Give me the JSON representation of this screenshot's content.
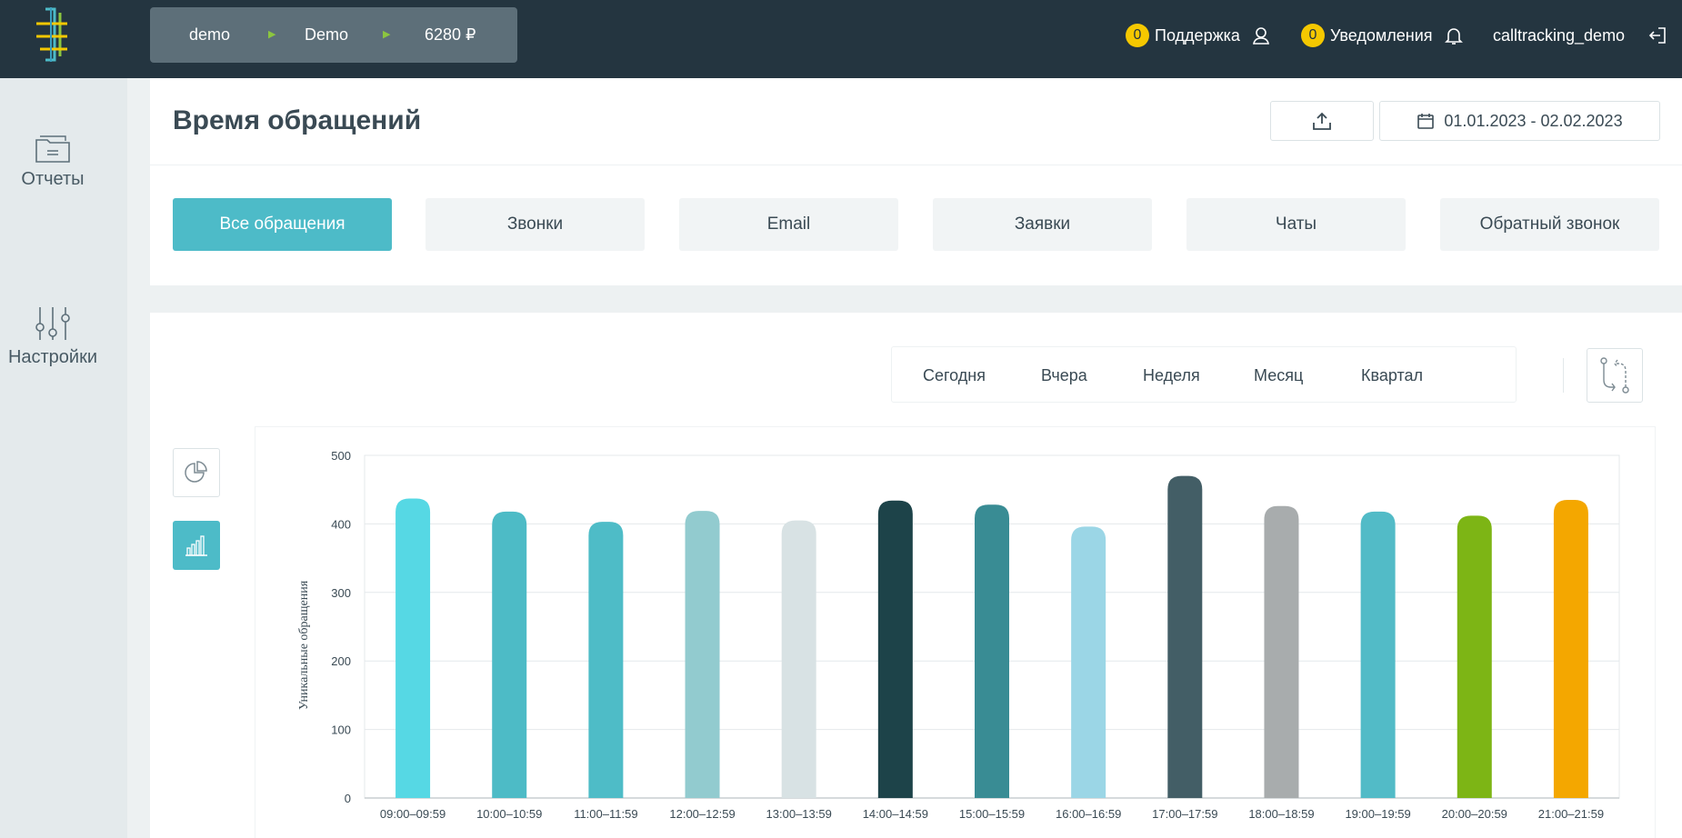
{
  "topbar": {
    "account": {
      "name": "demo",
      "project": "Demo",
      "balance": "6280 ₽"
    },
    "support": {
      "count": "0",
      "label": "Поддержка"
    },
    "notifications": {
      "count": "0",
      "label": "Уведомления"
    },
    "user": "calltracking_demo"
  },
  "sidebar": {
    "items": [
      {
        "label": "Отчеты",
        "icon": "folder-icon"
      },
      {
        "label": "Настройки",
        "icon": "sliders-icon"
      }
    ]
  },
  "header": {
    "title": "Время обращений",
    "date_range": "01.01.2023 - 02.02.2023"
  },
  "tabs": [
    {
      "label": "Все обращения",
      "active": true
    },
    {
      "label": "Звонки",
      "active": false
    },
    {
      "label": "Email",
      "active": false
    },
    {
      "label": "Заявки",
      "active": false
    },
    {
      "label": "Чаты",
      "active": false
    },
    {
      "label": "Обратный звонок",
      "active": false
    }
  ],
  "periods": [
    "Сегодня",
    "Вчера",
    "Неделя",
    "Месяц",
    "Квартал"
  ],
  "colors": {
    "accent": "#4dbbc8",
    "topbar": "#243540",
    "badge": "#f5c800"
  },
  "chart_data": {
    "type": "bar",
    "ylabel": "Уникальные обращения",
    "ylim": [
      0,
      500
    ],
    "yticks": [
      0,
      100,
      200,
      300,
      400,
      500
    ],
    "grid": true,
    "categories": [
      "09:00–09:59",
      "10:00–10:59",
      "11:00–11:59",
      "12:00–12:59",
      "13:00–13:59",
      "14:00–14:59",
      "15:00–15:59",
      "16:00–16:59",
      "17:00–17:59",
      "18:00–18:59",
      "19:00–19:59",
      "20:00–20:59",
      "21:00–21:59"
    ],
    "values": [
      437,
      418,
      403,
      419,
      405,
      434,
      428,
      396,
      470,
      426,
      418,
      412,
      435
    ],
    "bar_colors": [
      "#56d8e4",
      "#4dbbc6",
      "#4ebcc7",
      "#92cbcf",
      "#d8e2e4",
      "#1d4349",
      "#398c94",
      "#9bd6e6",
      "#435e66",
      "#a8acad",
      "#52bbc7",
      "#7db515",
      "#f4a700"
    ]
  }
}
